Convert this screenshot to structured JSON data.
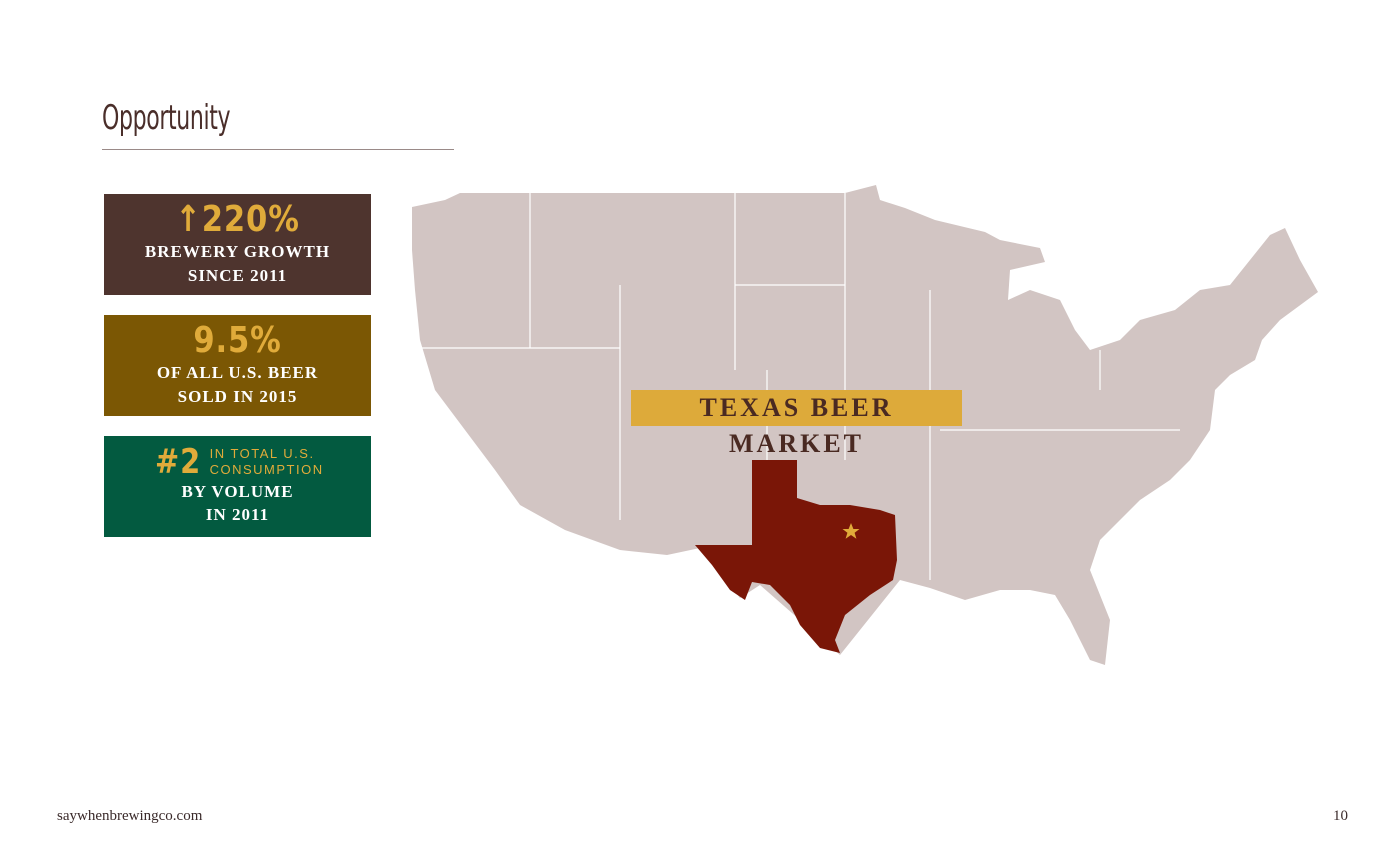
{
  "page": {
    "title": "Opportunity",
    "footer_url": "saywhenbrewingco.com",
    "page_number": "10"
  },
  "stats": [
    {
      "icon": "arrow-up-icon",
      "big": "220%",
      "lines": [
        "BREWERY GROWTH",
        "SINCE 2011"
      ],
      "color": "#4e342e"
    },
    {
      "big": "9.5%",
      "lines": [
        "OF ALL U.S. BEER",
        "SOLD IN 2015"
      ],
      "color": "#7b5704"
    },
    {
      "big": "#2",
      "small": [
        "IN TOTAL U.S.",
        "CONSUMPTION"
      ],
      "lines": [
        "BY VOLUME",
        "IN 2011"
      ],
      "color": "#035a40"
    }
  ],
  "map": {
    "label": "TEXAS BEER MARKET",
    "land_color": "#d2c5c3",
    "highlight_color": "#7a1607",
    "star_color": "#e0ab3a"
  }
}
